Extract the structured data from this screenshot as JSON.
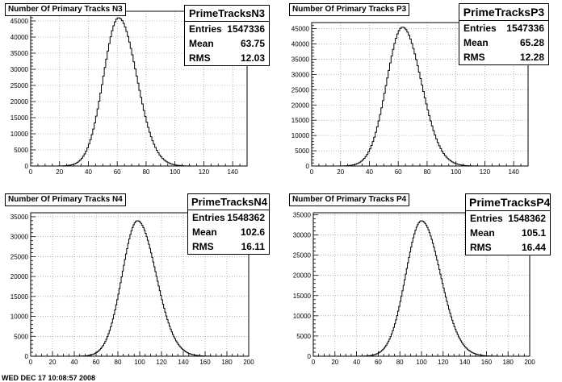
{
  "footer_text": "WED DEC 17 10:08:57 2008",
  "chart_data": [
    {
      "type": "bar",
      "title": "Number Of Primary Tracks N3",
      "stats": {
        "name": "PrimeTracksN3",
        "entries_label": "Entries",
        "entries": "1547336",
        "mean_label": "Mean",
        "mean": "63.75",
        "rms_label": "RMS",
        "rms": "12.03"
      },
      "xlim": [
        0,
        150
      ],
      "ylim": [
        0,
        48000
      ],
      "xticks": [
        "0",
        "20",
        "40",
        "60",
        "80",
        "100",
        "120",
        "140"
      ],
      "yticks": [
        "0",
        "5000",
        "10000",
        "15000",
        "20000",
        "25000",
        "30000",
        "35000",
        "40000",
        "45000"
      ],
      "peak": 46000,
      "center": 61,
      "sigma_left": 10.5,
      "sigma_right": 12.5
    },
    {
      "type": "bar",
      "title": "Number Of Primary Tracks P3",
      "stats": {
        "name": "PrimeTracksP3",
        "entries_label": "Entries",
        "entries": "1547336",
        "mean_label": "Mean",
        "mean": "65.28",
        "rms_label": "RMS",
        "rms": "12.28"
      },
      "xlim": [
        0,
        150
      ],
      "ylim": [
        0,
        47000
      ],
      "xticks": [
        "0",
        "20",
        "40",
        "60",
        "80",
        "100",
        "120",
        "140"
      ],
      "yticks": [
        "0",
        "5000",
        "10000",
        "15000",
        "20000",
        "25000",
        "30000",
        "35000",
        "40000",
        "45000"
      ],
      "peak": 45500,
      "center": 63,
      "sigma_left": 11,
      "sigma_right": 13
    },
    {
      "type": "bar",
      "title": "Number Of Primary Tracks N4",
      "stats": {
        "name": "PrimeTracksN4",
        "entries_label": "Entries",
        "entries": "1548362",
        "mean_label": "Mean",
        "mean": "102.6",
        "rms_label": "RMS",
        "rms": "16.11"
      },
      "xlim": [
        0,
        200
      ],
      "ylim": [
        0,
        36000
      ],
      "xticks": [
        "0",
        "20",
        "40",
        "60",
        "80",
        "100",
        "120",
        "140",
        "160",
        "180",
        "200"
      ],
      "yticks": [
        "0",
        "5000",
        "10000",
        "15000",
        "20000",
        "25000",
        "30000",
        "35000"
      ],
      "peak": 34000,
      "center": 98,
      "sigma_left": 14,
      "sigma_right": 17
    },
    {
      "type": "bar",
      "title": "Number Of Primary Tracks P4",
      "stats": {
        "name": "PrimeTracksP4",
        "entries_label": "Entries",
        "entries": "1548362",
        "mean_label": "Mean",
        "mean": "105.1",
        "rms_label": "RMS",
        "rms": "16.44"
      },
      "xlim": [
        0,
        200
      ],
      "ylim": [
        0,
        35500
      ],
      "xticks": [
        "0",
        "20",
        "40",
        "60",
        "80",
        "100",
        "120",
        "140",
        "160",
        "180",
        "200"
      ],
      "yticks": [
        "0",
        "5000",
        "10000",
        "15000",
        "20000",
        "25000",
        "30000",
        "35000"
      ],
      "peak": 33500,
      "center": 100,
      "sigma_left": 14.5,
      "sigma_right": 17.5
    }
  ]
}
